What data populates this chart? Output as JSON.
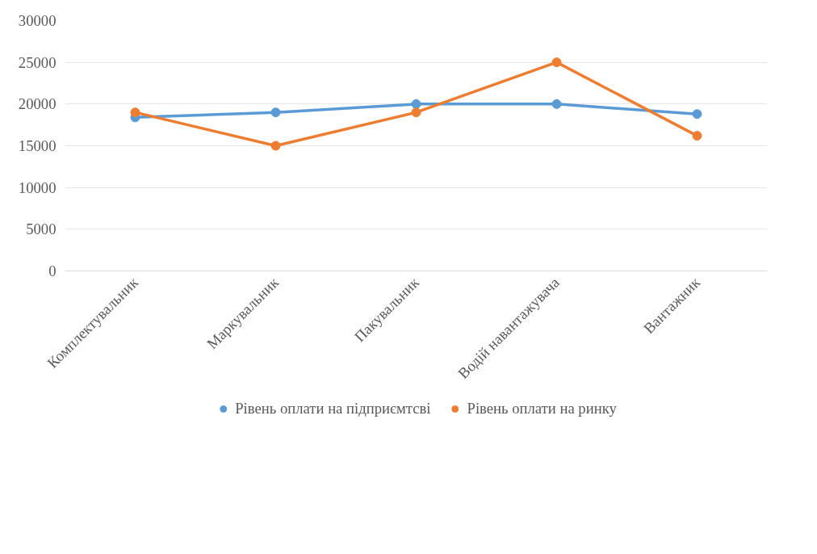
{
  "chart_data": {
    "type": "line",
    "categories": [
      "Комплектувальник",
      "Маркувальник",
      "Пакувальник",
      "Водій навантажувача",
      "Вантажник"
    ],
    "series": [
      {
        "name": "Рівень оплати на підприємтсві",
        "color": "#5b9bd5",
        "values": [
          18400,
          19000,
          20000,
          20000,
          18800
        ]
      },
      {
        "name": "Рівень оплати на ринку",
        "color": "#ed7d31",
        "values": [
          19000,
          15000,
          19000,
          25000,
          16200
        ]
      }
    ],
    "ylim": [
      0,
      30000
    ],
    "yticks": [
      0,
      5000,
      10000,
      15000,
      20000,
      25000,
      30000
    ],
    "grid": "y",
    "legend": "bottom",
    "marker": "circle",
    "line_style": "solid"
  }
}
